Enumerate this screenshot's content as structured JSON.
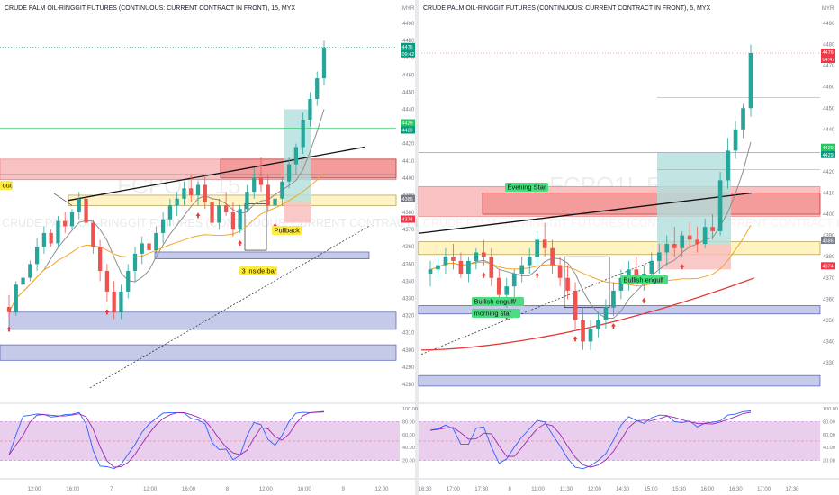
{
  "panels": [
    {
      "id": "left",
      "title": "CRUDE PALM OIL-RINGGIT FUTURES (CONTINUOUS: CURRENT CONTRACT IN FRONT), 15, MYX",
      "watermark": "FCPO1!, 15",
      "watermark_sub": "CRUDE PALM OIL-RINGGIT FUTURES (CONTINUOUS: CURRENT CONTRACT IN FRONT)",
      "currency": "MYR",
      "price_ticks": [
        4490,
        4480,
        4470,
        4460,
        4450,
        4440,
        4430,
        4420,
        4410,
        4400,
        4390,
        4380,
        4370,
        4360,
        4350,
        4340,
        4330,
        4320,
        4310,
        4300,
        4290,
        4280
      ],
      "time_labels": [
        "12:00",
        "16:00",
        "7",
        "12:00",
        "16:00",
        "8",
        "12:00",
        "16:00",
        "9",
        "12:00"
      ],
      "stoch_ticks": [
        "100.00",
        "80.00",
        "60.00",
        "40.00",
        "20.00"
      ],
      "price_badges": [
        {
          "text": "4476",
          "color": "#089981"
        },
        {
          "text": "09:42",
          "color": "#089981"
        },
        {
          "text": "4429",
          "color": "#22c55e"
        },
        {
          "text": "4429",
          "color": "#089981"
        },
        {
          "text": "4386",
          "color": "#787b86"
        },
        {
          "text": "4374",
          "color": "#f23645"
        }
      ],
      "annotations": [
        {
          "text": "out",
          "bg": "#ffeb3b"
        },
        {
          "text": "Pullback",
          "bg": "#ffeb3b"
        },
        {
          "text": "3 inside bar",
          "bg": "#ffeb3b"
        }
      ]
    },
    {
      "id": "right",
      "title": "CRUDE PALM OIL-RINGGIT FUTURES (CONTINUOUS: CURRENT CONTRACT IN FRONT), 5, MYX",
      "watermark": "FCPO1!, 5",
      "watermark_sub": "CRUDE PALM OIL-RINGGIT FUTURES (CONTINUOUS: CURRENT CONTRACT IN FRONT)",
      "currency": "MYR",
      "price_ticks": [
        4490,
        4480,
        4470,
        4460,
        4450,
        4440,
        4430,
        4420,
        4410,
        4400,
        4390,
        4380,
        4370,
        4360,
        4350,
        4340,
        4330
      ],
      "time_labels": [
        "16:30",
        "17:00",
        "17:30",
        "8",
        "11:00",
        "11:30",
        "12:00",
        "14:30",
        "15:00",
        "15:30",
        "16:00",
        "16:30",
        "17:00",
        "17:30"
      ],
      "stoch_ticks": [
        "100.00",
        "80.00",
        "60.00",
        "40.00",
        "20.00"
      ],
      "price_badges": [
        {
          "text": "4476",
          "color": "#f23645"
        },
        {
          "text": "04:47",
          "color": "#f23645"
        },
        {
          "text": "4429",
          "color": "#22c55e"
        },
        {
          "text": "4429",
          "color": "#089981"
        },
        {
          "text": "4386",
          "color": "#787b86"
        },
        {
          "text": "4374",
          "color": "#f23645"
        }
      ],
      "annotations": [
        {
          "text": "Evening Star",
          "bg": "#4ade80"
        },
        {
          "text": "Bullish engulf/",
          "bg": "#4ade80"
        },
        {
          "text": "morning star",
          "bg": "#4ade80"
        },
        {
          "text": "Bullish engulf",
          "bg": "#4ade80"
        }
      ]
    }
  ],
  "colors": {
    "up": "#26a69a",
    "down": "#ef5350",
    "ma_fast": "#8d8d8d",
    "ma_slow": "#f5a623",
    "ma_long": "#e53935",
    "stoch_k": "#2962ff",
    "stoch_d": "#9c27b0",
    "stoch_band": "#e1bee7",
    "resistance_zone": "#f8bbbb",
    "support_zone": "#c5cae9",
    "pullback_zone": "#fff3c4",
    "target_zone": "#b2dfdb"
  },
  "chart_data": [
    {
      "panel": "left",
      "type": "candlestick",
      "interval": "15",
      "ylim": [
        4280,
        4492
      ],
      "ohlc": [
        [
          4325,
          4332,
          4318,
          4322
        ],
        [
          4322,
          4340,
          4320,
          4338
        ],
        [
          4338,
          4346,
          4332,
          4342
        ],
        [
          4342,
          4352,
          4340,
          4350
        ],
        [
          4350,
          4365,
          4346,
          4360
        ],
        [
          4360,
          4372,
          4356,
          4368
        ],
        [
          4368,
          4370,
          4360,
          4362
        ],
        [
          4362,
          4378,
          4360,
          4375
        ],
        [
          4375,
          4380,
          4368,
          4372
        ],
        [
          4372,
          4382,
          4370,
          4380
        ],
        [
          4380,
          4392,
          4376,
          4388
        ],
        [
          4388,
          4392,
          4370,
          4374
        ],
        [
          4374,
          4376,
          4356,
          4360
        ],
        [
          4360,
          4364,
          4340,
          4346
        ],
        [
          4346,
          4350,
          4328,
          4334
        ],
        [
          4334,
          4340,
          4318,
          4322
        ],
        [
          4322,
          4338,
          4318,
          4334
        ],
        [
          4334,
          4350,
          4330,
          4346
        ],
        [
          4346,
          4360,
          4340,
          4356
        ],
        [
          4356,
          4366,
          4350,
          4362
        ],
        [
          4362,
          4370,
          4352,
          4358
        ],
        [
          4358,
          4372,
          4356,
          4368
        ],
        [
          4368,
          4380,
          4362,
          4376
        ],
        [
          4376,
          4388,
          4372,
          4384
        ],
        [
          4384,
          4392,
          4378,
          4388
        ],
        [
          4388,
          4398,
          4384,
          4394
        ],
        [
          4394,
          4402,
          4386,
          4390
        ],
        [
          4390,
          4398,
          4384,
          4396
        ],
        [
          4396,
          4402,
          4382,
          4386
        ],
        [
          4386,
          4390,
          4370,
          4374
        ],
        [
          4374,
          4388,
          4370,
          4384
        ],
        [
          4384,
          4392,
          4378,
          4380
        ],
        [
          4380,
          4386,
          4366,
          4370
        ],
        [
          4370,
          4384,
          4368,
          4382
        ],
        [
          4382,
          4396,
          4380,
          4392
        ],
        [
          4392,
          4406,
          4388,
          4400
        ],
        [
          4400,
          4412,
          4392,
          4396
        ],
        [
          4396,
          4402,
          4380,
          4384
        ],
        [
          4384,
          4392,
          4378,
          4388
        ],
        [
          4388,
          4400,
          4384,
          4398
        ],
        [
          4398,
          4412,
          4394,
          4408
        ],
        [
          4408,
          4420,
          4402,
          4418
        ],
        [
          4418,
          4438,
          4414,
          4434
        ],
        [
          4434,
          4450,
          4430,
          4446
        ],
        [
          4446,
          4462,
          4442,
          4458
        ],
        [
          4458,
          4480,
          4454,
          4476
        ]
      ],
      "stochastic_range": [
        0,
        100
      ]
    },
    {
      "panel": "right",
      "type": "candlestick",
      "interval": "5",
      "ylim": [
        4318,
        4492
      ],
      "ohlc": [
        [
          4372,
          4378,
          4366,
          4374
        ],
        [
          4374,
          4380,
          4370,
          4376
        ],
        [
          4376,
          4384,
          4372,
          4380
        ],
        [
          4380,
          4386,
          4374,
          4378
        ],
        [
          4378,
          4382,
          4370,
          4372
        ],
        [
          4372,
          4380,
          4368,
          4378
        ],
        [
          4378,
          4384,
          4374,
          4382
        ],
        [
          4382,
          4388,
          4376,
          4380
        ],
        [
          4380,
          4384,
          4366,
          4370
        ],
        [
          4370,
          4374,
          4358,
          4362
        ],
        [
          4362,
          4370,
          4356,
          4366
        ],
        [
          4366,
          4374,
          4360,
          4372
        ],
        [
          4372,
          4380,
          4368,
          4376
        ],
        [
          4376,
          4384,
          4372,
          4380
        ],
        [
          4380,
          4392,
          4376,
          4388
        ],
        [
          4388,
          4396,
          4380,
          4384
        ],
        [
          4384,
          4388,
          4372,
          4376
        ],
        [
          4376,
          4380,
          4366,
          4370
        ],
        [
          4370,
          4376,
          4360,
          4364
        ],
        [
          4364,
          4368,
          4346,
          4350
        ],
        [
          4350,
          4356,
          4336,
          4340
        ],
        [
          4340,
          4350,
          4336,
          4346
        ],
        [
          4346,
          4354,
          4342,
          4350
        ],
        [
          4350,
          4360,
          4346,
          4356
        ],
        [
          4356,
          4368,
          4352,
          4364
        ],
        [
          4364,
          4374,
          4360,
          4370
        ],
        [
          4370,
          4378,
          4364,
          4374
        ],
        [
          4374,
          4380,
          4366,
          4368
        ],
        [
          4368,
          4376,
          4364,
          4372
        ],
        [
          4372,
          4382,
          4368,
          4378
        ],
        [
          4378,
          4386,
          4372,
          4382
        ],
        [
          4382,
          4390,
          4376,
          4386
        ],
        [
          4386,
          4394,
          4380,
          4384
        ],
        [
          4384,
          4392,
          4380,
          4390
        ],
        [
          4390,
          4396,
          4384,
          4388
        ],
        [
          4388,
          4394,
          4382,
          4386
        ],
        [
          4386,
          4398,
          4384,
          4394
        ],
        [
          4394,
          4400,
          4388,
          4392
        ],
        [
          4392,
          4420,
          4390,
          4416
        ],
        [
          4416,
          4436,
          4412,
          4430
        ],
        [
          4430,
          4444,
          4426,
          4440
        ],
        [
          4440,
          4452,
          4436,
          4450
        ],
        [
          4450,
          4480,
          4446,
          4476
        ]
      ],
      "stochastic_range": [
        0,
        100
      ]
    }
  ]
}
